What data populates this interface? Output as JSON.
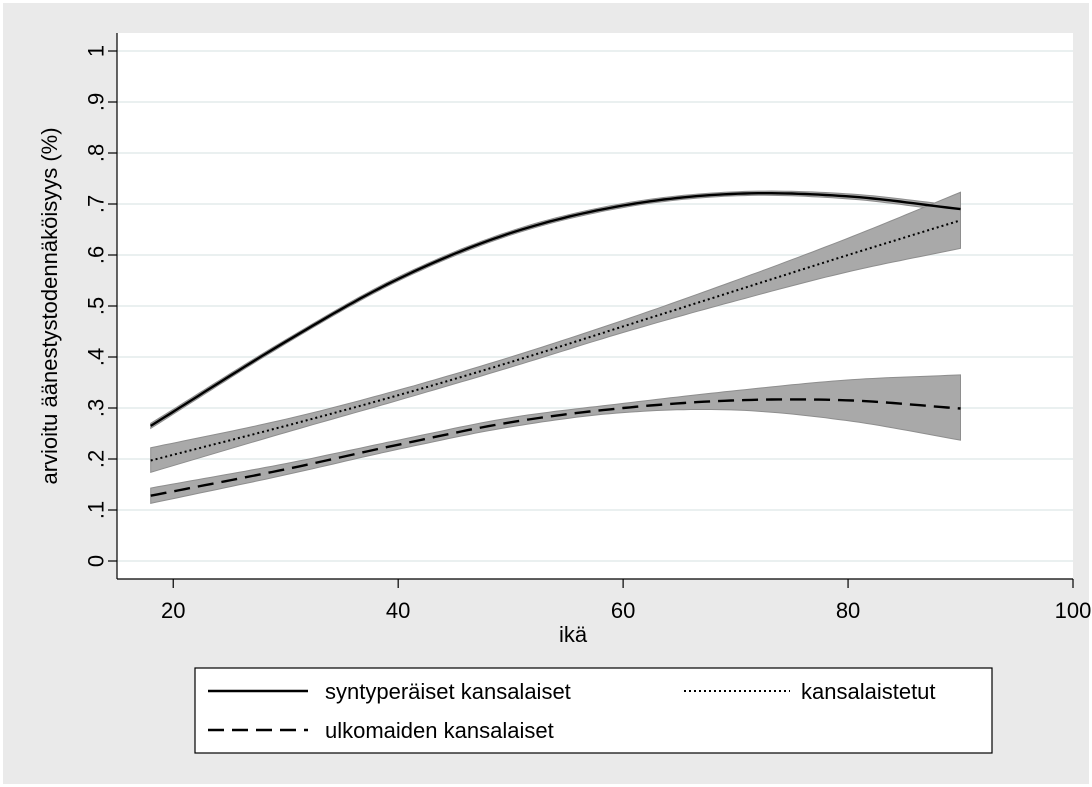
{
  "chart_data": {
    "type": "line",
    "title": "",
    "xlabel": "ikä",
    "ylabel": "arvioitu äänestystodennäköisyys (%)",
    "xlim": [
      15,
      100
    ],
    "ylim": [
      0,
      1
    ],
    "x_ticks": [
      20,
      40,
      60,
      80,
      100
    ],
    "y_ticks": [
      0,
      0.1,
      0.2,
      0.3,
      0.4,
      0.5,
      0.6,
      0.7,
      0.8,
      0.9,
      1
    ],
    "x_tick_labels": [
      "20",
      "40",
      "60",
      "80",
      "100"
    ],
    "y_tick_labels": [
      "0",
      ".1",
      ".2",
      ".3",
      ".4",
      ".5",
      ".6",
      ".7",
      ".8",
      ".9",
      "1"
    ],
    "grid": true,
    "legend_position": "bottom",
    "colors": {
      "outer_background": "#eaeaea",
      "plot_background": "#ffffff",
      "gridline": "#e4ecec",
      "confidence_band": "#a9a9a9",
      "line": "#000000"
    },
    "x": [
      18,
      30,
      40,
      50,
      60,
      70,
      80,
      90
    ],
    "series": [
      {
        "name": "syntyperäiset kansalaiset",
        "style": "solid",
        "values": [
          0.265,
          0.43,
          0.553,
          0.643,
          0.697,
          0.72,
          0.715,
          0.69
        ],
        "lower": [
          0.26,
          0.426,
          0.549,
          0.639,
          0.693,
          0.716,
          0.71,
          0.684
        ],
        "upper": [
          0.27,
          0.434,
          0.557,
          0.647,
          0.701,
          0.724,
          0.72,
          0.696
        ]
      },
      {
        "name": "kansalaistetut",
        "style": "dotted",
        "values": [
          0.197,
          0.265,
          0.325,
          0.39,
          0.46,
          0.53,
          0.6,
          0.668
        ],
        "lower": [
          0.174,
          0.252,
          0.315,
          0.38,
          0.448,
          0.51,
          0.567,
          0.613
        ],
        "upper": [
          0.222,
          0.278,
          0.335,
          0.4,
          0.472,
          0.55,
          0.633,
          0.723
        ]
      },
      {
        "name": "ulkomaiden kansalaiset",
        "style": "dashed",
        "values": [
          0.128,
          0.18,
          0.228,
          0.272,
          0.3,
          0.315,
          0.315,
          0.299
        ],
        "lower": [
          0.113,
          0.169,
          0.219,
          0.263,
          0.291,
          0.296,
          0.275,
          0.237
        ],
        "upper": [
          0.143,
          0.191,
          0.237,
          0.281,
          0.309,
          0.334,
          0.355,
          0.365
        ]
      }
    ]
  }
}
